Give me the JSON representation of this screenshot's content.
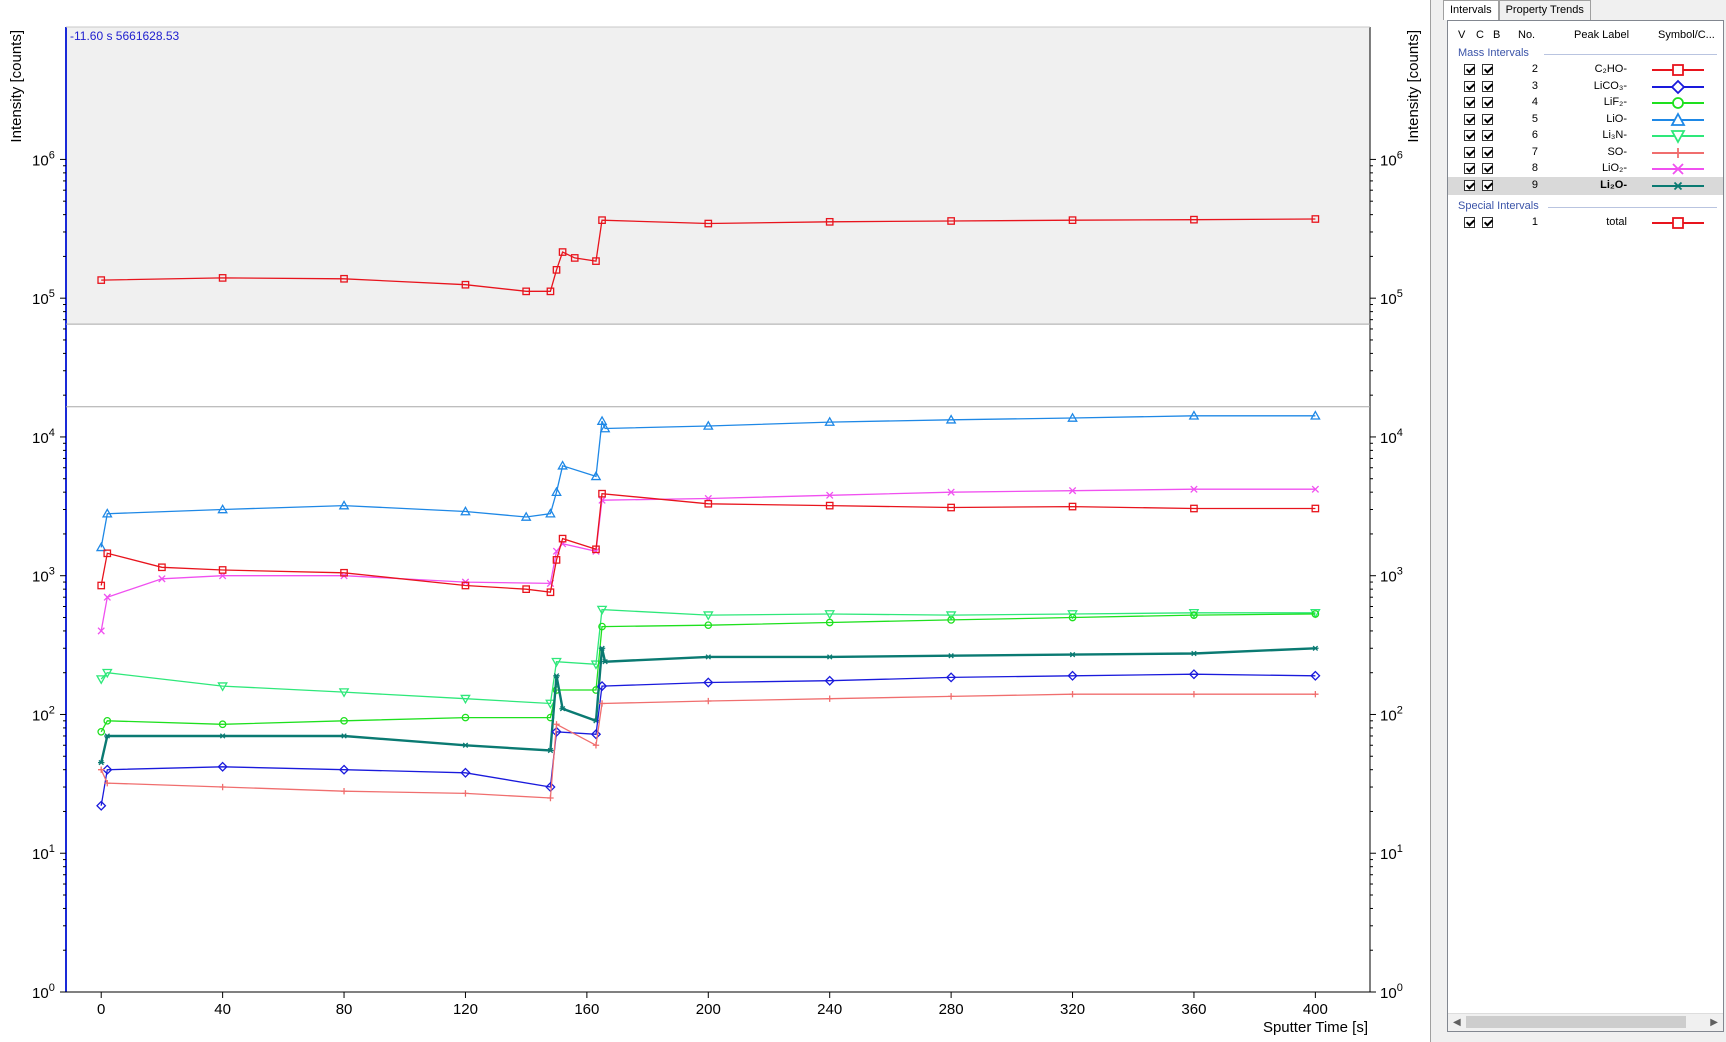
{
  "readout": {
    "time": "-11.60 s",
    "value": "5661628.53"
  },
  "tabs": [
    {
      "label": "Intervals",
      "active": true
    },
    {
      "label": "Property Trends",
      "active": false
    }
  ],
  "table_headers": {
    "v": "V",
    "c": "C",
    "b": "B",
    "no": "No.",
    "peak_label": "Peak Label",
    "symbol": "Symbol/C..."
  },
  "sections": {
    "mass": "Mass Intervals",
    "special": "Special Intervals"
  },
  "mass_intervals": [
    {
      "no": "2",
      "label": "C₂HO-",
      "color": "#e8141d",
      "marker": "square",
      "selected": false
    },
    {
      "no": "3",
      "label": "LiCO₃-",
      "color": "#1a1adc",
      "marker": "diamond",
      "selected": false
    },
    {
      "no": "4",
      "label": "LiF₂-",
      "color": "#1ee01e",
      "marker": "circle",
      "selected": false
    },
    {
      "no": "5",
      "label": "LiO-",
      "color": "#1e88e6",
      "marker": "triangle-up",
      "selected": false
    },
    {
      "no": "6",
      "label": "Li₃N-",
      "color": "#2ee87a",
      "marker": "triangle-down",
      "selected": false
    },
    {
      "no": "7",
      "label": "SO-",
      "color": "#f06e6e",
      "marker": "plus",
      "selected": false
    },
    {
      "no": "8",
      "label": "LiO₂-",
      "color": "#f050f0",
      "marker": "x",
      "selected": false
    },
    {
      "no": "9",
      "label": "Li₂O-",
      "color": "#0a7a72",
      "marker": "star",
      "selected": true
    }
  ],
  "special_intervals": [
    {
      "no": "1",
      "label": "total",
      "color": "#e8141d",
      "marker": "square",
      "selected": false
    }
  ],
  "chart_data": {
    "type": "line",
    "xlabel": "Sputter Time [s]",
    "ylabel": "Intensity [counts]",
    "ylabel_right": "Intensity [counts]",
    "xlim": [
      -11.6,
      418
    ],
    "xticks": [
      0,
      40,
      80,
      120,
      160,
      200,
      240,
      280,
      320,
      360,
      400
    ],
    "yscale": "log",
    "ylim": [
      1,
      9000000
    ],
    "yticks": [
      {
        "base": "10",
        "exp": "0",
        "value": 1
      },
      {
        "base": "10",
        "exp": "1",
        "value": 10
      },
      {
        "base": "10",
        "exp": "2",
        "value": 100
      },
      {
        "base": "10",
        "exp": "3",
        "value": 1000
      },
      {
        "base": "10",
        "exp": "4",
        "value": 10000
      },
      {
        "base": "10",
        "exp": "5",
        "value": 100000
      },
      {
        "base": "10",
        "exp": "6",
        "value": 1000000
      }
    ],
    "horizontal_lines": [
      65000,
      16500
    ],
    "shaded_above": 65000,
    "series": [
      {
        "name": "total",
        "color": "#e8141d",
        "marker": "square",
        "x": [
          0,
          40,
          80,
          120,
          140,
          148,
          150,
          152,
          156,
          163,
          165,
          200,
          240,
          280,
          320,
          360,
          400
        ],
        "y": [
          135000,
          140000,
          138000,
          125000,
          112000,
          112000,
          160000,
          215000,
          195000,
          185000,
          365000,
          345000,
          355000,
          360000,
          365000,
          368000,
          372000
        ]
      },
      {
        "name": "LiO-",
        "color": "#1e88e6",
        "marker": "triangle-up",
        "x": [
          0,
          2,
          40,
          80,
          120,
          140,
          148,
          150,
          152,
          163,
          165,
          166,
          200,
          240,
          280,
          320,
          360,
          400
        ],
        "y": [
          1600,
          2800,
          3000,
          3200,
          2900,
          2650,
          2800,
          4000,
          6200,
          5200,
          13000,
          11500,
          12000,
          12800,
          13300,
          13700,
          14200,
          14200
        ]
      },
      {
        "name": "LiO₂-",
        "color": "#f050f0",
        "marker": "x",
        "x": [
          0,
          2,
          20,
          40,
          80,
          120,
          148,
          150,
          152,
          163,
          165,
          200,
          240,
          280,
          320,
          360,
          400
        ],
        "y": [
          400,
          700,
          950,
          1000,
          1000,
          900,
          880,
          1500,
          1700,
          1500,
          3500,
          3600,
          3800,
          4000,
          4100,
          4200,
          4200
        ]
      },
      {
        "name": "C₂HO-",
        "color": "#e8141d",
        "marker": "square",
        "x": [
          0,
          2,
          20,
          40,
          80,
          120,
          140,
          148,
          150,
          152,
          163,
          165,
          200,
          240,
          280,
          320,
          360,
          400
        ],
        "y": [
          850,
          1450,
          1150,
          1100,
          1050,
          850,
          800,
          760,
          1300,
          1850,
          1550,
          3900,
          3300,
          3200,
          3100,
          3150,
          3050,
          3050
        ]
      },
      {
        "name": "Li₃N-",
        "color": "#2ee87a",
        "marker": "triangle-down",
        "x": [
          0,
          2,
          40,
          80,
          120,
          148,
          150,
          163,
          165,
          200,
          240,
          280,
          320,
          360,
          400
        ],
        "y": [
          180,
          200,
          160,
          145,
          130,
          120,
          240,
          230,
          570,
          520,
          530,
          520,
          530,
          540,
          540
        ]
      },
      {
        "name": "LiF₂-",
        "color": "#1ee01e",
        "marker": "circle",
        "x": [
          0,
          2,
          40,
          80,
          120,
          148,
          150,
          163,
          165,
          200,
          240,
          280,
          320,
          360,
          400
        ],
        "y": [
          75,
          90,
          85,
          90,
          95,
          95,
          150,
          150,
          430,
          440,
          460,
          480,
          500,
          520,
          530
        ]
      },
      {
        "name": "Li₂O-",
        "color": "#0a7a72",
        "marker": "star",
        "x": [
          0,
          2,
          40,
          80,
          120,
          148,
          150,
          152,
          163,
          165,
          166,
          200,
          240,
          280,
          320,
          360,
          400
        ],
        "y": [
          45,
          70,
          70,
          70,
          60,
          55,
          190,
          110,
          90,
          300,
          240,
          260,
          260,
          265,
          270,
          275,
          300
        ]
      },
      {
        "name": "LiCO₃-",
        "color": "#1a1adc",
        "marker": "diamond",
        "x": [
          0,
          2,
          40,
          80,
          120,
          148,
          150,
          163,
          165,
          200,
          240,
          280,
          320,
          360,
          400
        ],
        "y": [
          22,
          40,
          42,
          40,
          38,
          30,
          75,
          72,
          160,
          170,
          175,
          185,
          190,
          195,
          190
        ]
      },
      {
        "name": "SO-",
        "color": "#f06e6e",
        "marker": "plus",
        "x": [
          0,
          2,
          40,
          80,
          120,
          148,
          150,
          163,
          165,
          200,
          240,
          280,
          320,
          360,
          400
        ],
        "y": [
          40,
          32,
          30,
          28,
          27,
          25,
          85,
          60,
          120,
          125,
          130,
          135,
          140,
          140,
          140
        ]
      }
    ]
  }
}
